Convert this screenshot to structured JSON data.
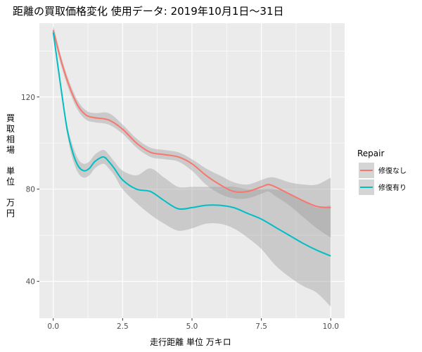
{
  "chart_data": {
    "type": "line",
    "title": "距離の買取価格変化 使用データ: 2019年10月1日～31日",
    "xlabel": "走行距離 単位 万キロ",
    "ylabel": "買取相場 単位 万円",
    "ylabel_lines": [
      "買",
      "取",
      "相",
      "場",
      "",
      "単",
      "位",
      "",
      "万",
      "円"
    ],
    "xlim": [
      -0.5,
      10.5
    ],
    "ylim": [
      24,
      152
    ],
    "x_ticks": [
      0,
      2.5,
      5,
      7.5,
      10
    ],
    "x_tick_labels": [
      "0.0",
      "2.5",
      "5.0",
      "7.5",
      "10.0"
    ],
    "y_ticks": [
      40,
      80,
      120
    ],
    "y_tick_labels": [
      "40",
      "80",
      "120"
    ],
    "grid": true,
    "legend": {
      "title": "Repair",
      "position": "right"
    },
    "series": [
      {
        "name": "修復なし",
        "color": "#F8766D",
        "x": [
          0,
          0.3,
          0.6,
          0.9,
          1.2,
          1.5,
          2.0,
          2.5,
          3.0,
          3.5,
          4.0,
          4.5,
          5.0,
          5.5,
          6.0,
          6.5,
          7.0,
          7.5,
          7.75,
          8.0,
          8.5,
          9.0,
          9.5,
          10.0
        ],
        "y": [
          149,
          135,
          124,
          116,
          112,
          111,
          110,
          106,
          100,
          96,
          95,
          94,
          91,
          86,
          82,
          79,
          79,
          81,
          82,
          81,
          78,
          75,
          72.5,
          72
        ],
        "ci_lower": [
          147,
          133,
          122,
          114,
          110,
          109,
          108,
          104,
          98,
          94,
          93,
          92,
          88,
          82,
          78,
          76,
          76,
          78,
          79,
          77,
          73,
          68,
          63,
          59
        ],
        "ci_upper": [
          151,
          137,
          126,
          118,
          114,
          113,
          113,
          108,
          102,
          98,
          97,
          96,
          93,
          89,
          86,
          83,
          82,
          84,
          85,
          85,
          83,
          82,
          82,
          85
        ]
      },
      {
        "name": "修復有り",
        "color": "#00BFC4",
        "x": [
          0,
          0.3,
          0.5,
          0.7,
          0.9,
          1.1,
          1.3,
          1.5,
          1.8,
          2.0,
          2.2,
          2.5,
          3.0,
          3.5,
          4.0,
          4.5,
          5.0,
          5.5,
          6.0,
          6.5,
          7.0,
          7.5,
          8.0,
          8.5,
          9.0,
          9.5,
          10.0
        ],
        "y": [
          148,
          122,
          106,
          96,
          90,
          88,
          89,
          92,
          94,
          92,
          89,
          84,
          80,
          79,
          75,
          71.5,
          72,
          73,
          73,
          72,
          69.5,
          67,
          63.5,
          60,
          56.5,
          53.5,
          51
        ],
        "ci_lower": [
          146,
          120,
          104,
          93,
          87,
          85,
          86,
          89,
          91,
          89,
          86,
          80,
          74,
          69,
          65,
          62,
          63,
          65,
          65,
          63,
          59,
          54,
          47,
          42,
          38,
          35,
          29
        ],
        "ci_upper": [
          150,
          124,
          108,
          99,
          93,
          91,
          92,
          95,
          97,
          95,
          92,
          88,
          86,
          89,
          85,
          81,
          81,
          81,
          81,
          81,
          80,
          80,
          80,
          78,
          75,
          72,
          73
        ]
      }
    ]
  }
}
